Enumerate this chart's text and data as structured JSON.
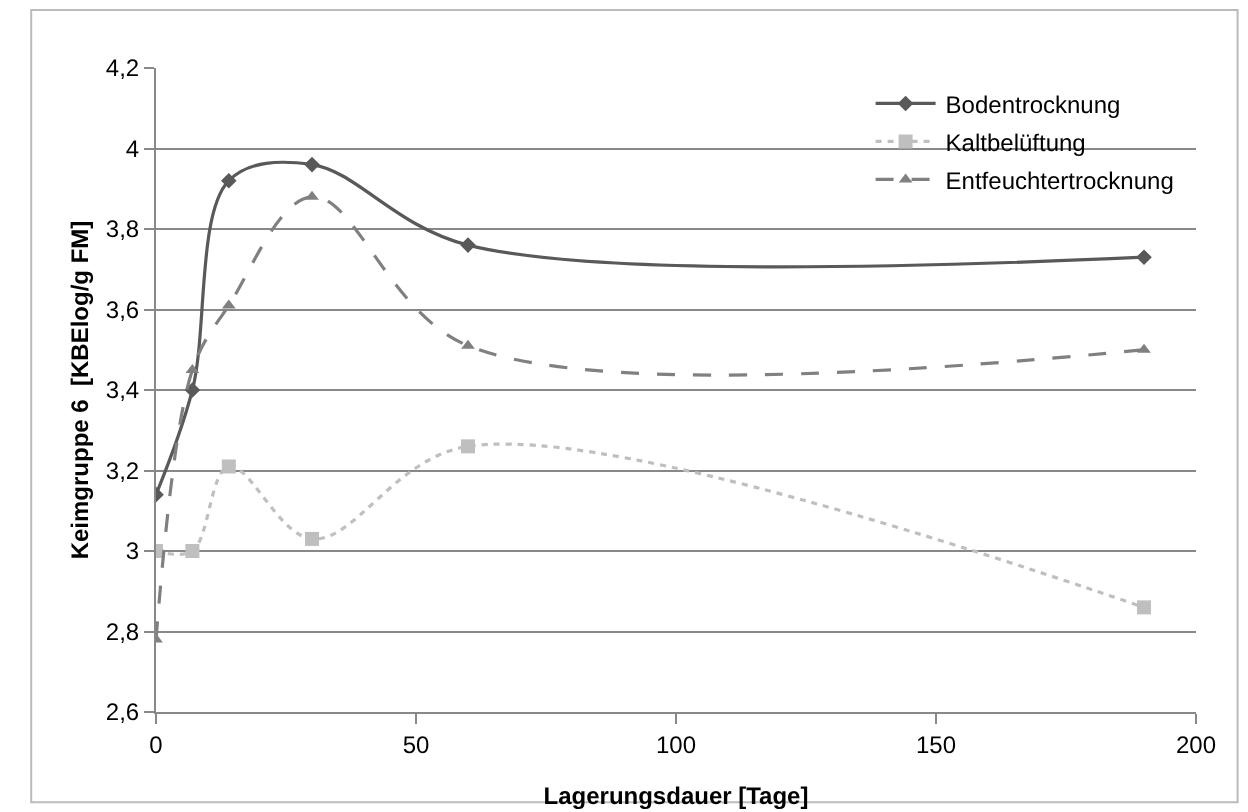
{
  "chart_data": {
    "type": "line",
    "xlabel": "Lagerungsdauer [Tage]",
    "ylabel": "Keimgruppe 6  [KBElog/g FM]",
    "x": [
      0,
      7,
      14,
      30,
      60,
      190
    ],
    "series": [
      {
        "name": "Bodentrocknung",
        "color": "#595959",
        "marker": "diamond",
        "line_style": "solid",
        "values": [
          3.14,
          3.4,
          3.92,
          3.96,
          3.76,
          3.73
        ]
      },
      {
        "name": "Kaltbelüftung",
        "color": "#bfbfbf",
        "marker": "square",
        "line_style": "dotted",
        "values": [
          3.0,
          3.0,
          3.21,
          3.03,
          3.26,
          2.86
        ]
      },
      {
        "name": "Entfeuchtertrocknung",
        "color": "#808080",
        "marker": "triangle",
        "line_style": "dashed",
        "values": [
          2.78,
          3.45,
          3.61,
          3.88,
          3.51,
          3.5
        ]
      }
    ],
    "xlim": [
      0,
      200
    ],
    "xticks": [
      0,
      50,
      100,
      150,
      200
    ],
    "ylim": [
      2.6,
      4.2
    ],
    "yticks": [
      {
        "value": 2.6,
        "label": "2,6"
      },
      {
        "value": 2.8,
        "label": "2,8"
      },
      {
        "value": 3,
        "label": "3"
      },
      {
        "value": 3.2,
        "label": "3,2"
      },
      {
        "value": 3.4,
        "label": "3,4"
      },
      {
        "value": 3.6,
        "label": "3,6"
      },
      {
        "value": 3.8,
        "label": "3,8"
      },
      {
        "value": 4,
        "label": "4"
      },
      {
        "value": 4.2,
        "label": "4,2"
      }
    ],
    "grid": "y",
    "legend": "top right"
  }
}
